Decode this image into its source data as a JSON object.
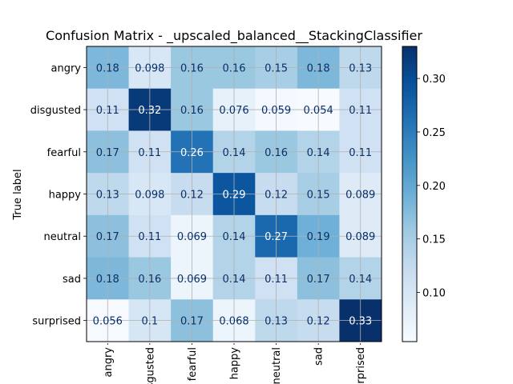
{
  "chart_data": {
    "type": "heatmap",
    "title": "Confusion Matrix - _upscaled_balanced__StackingClassifier",
    "ylabel": "True label",
    "xlabel": "",
    "row_labels": [
      "angry",
      "disgusted",
      "fearful",
      "happy",
      "neutral",
      "sad",
      "surprised"
    ],
    "col_labels": [
      "angry",
      "disgusted",
      "fearful",
      "happy",
      "neutral",
      "sad",
      "surprised"
    ],
    "values": [
      [
        0.18,
        0.098,
        0.16,
        0.16,
        0.15,
        0.18,
        0.13
      ],
      [
        0.11,
        0.32,
        0.16,
        0.076,
        0.059,
        0.054,
        0.11
      ],
      [
        0.17,
        0.11,
        0.26,
        0.14,
        0.16,
        0.14,
        0.11
      ],
      [
        0.13,
        0.098,
        0.12,
        0.29,
        0.12,
        0.15,
        0.089
      ],
      [
        0.17,
        0.11,
        0.069,
        0.14,
        0.27,
        0.19,
        0.089
      ],
      [
        0.18,
        0.16,
        0.069,
        0.14,
        0.11,
        0.17,
        0.14
      ],
      [
        0.056,
        0.1,
        0.17,
        0.068,
        0.13,
        0.12,
        0.33
      ]
    ],
    "colormap": "Blues",
    "vmin": 0.054,
    "vmax": 0.33,
    "colorbar_ticks": [
      0.1,
      0.15,
      0.2,
      0.25,
      0.3
    ],
    "colorbar_tick_labels": [
      "0.10",
      "0.15",
      "0.20",
      "0.25",
      "0.30"
    ],
    "grid": true,
    "text_colors": {
      "light": "#ffffff",
      "dark": "#08306b"
    }
  }
}
